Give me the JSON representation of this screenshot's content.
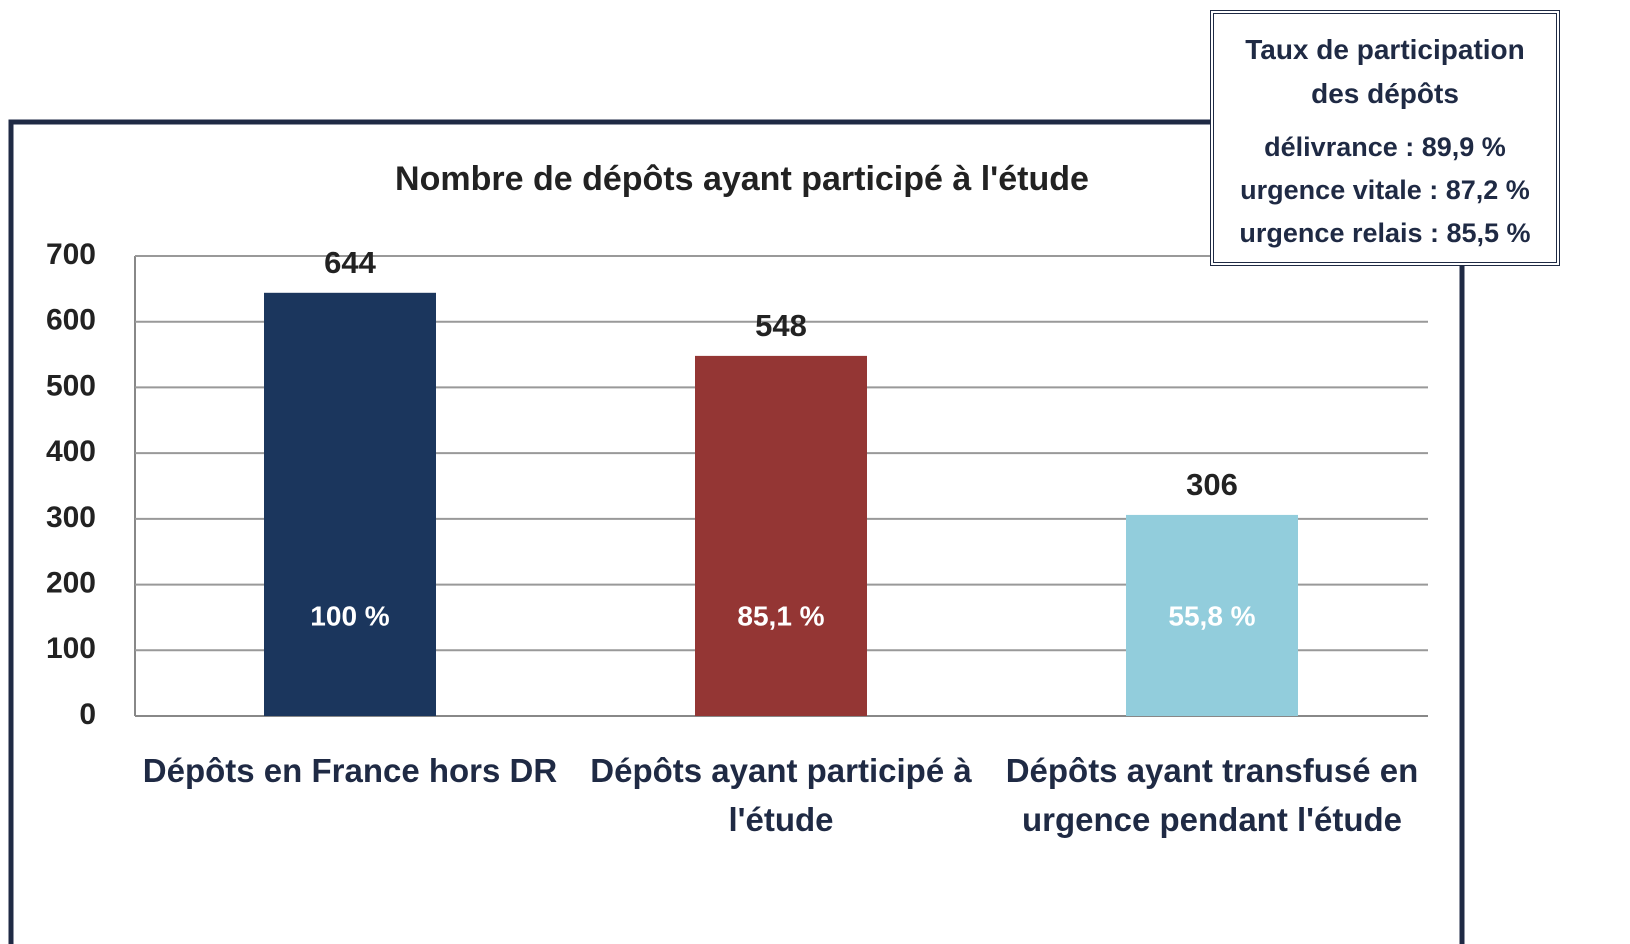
{
  "chart_data": {
    "type": "bar",
    "title": "Nombre de dépôts ayant participé à l'étude",
    "categories": [
      "Dépôts en France hors DR",
      "Dépôts ayant participé à l'étude",
      "Dépôts ayant transfusé en urgence pendant l'étude"
    ],
    "values": [
      644,
      548,
      306
    ],
    "colors": [
      "#1b365d",
      "#943634",
      "#92cddc"
    ],
    "annotations": [
      "100 %",
      "85,1 %",
      "55,8 %"
    ],
    "ylim": [
      0,
      700
    ],
    "yticks": [
      0,
      100,
      200,
      300,
      400,
      500,
      600,
      700
    ],
    "grid": true
  },
  "info_box": {
    "title": "Taux de participation des dépôts",
    "lines": [
      "délivrance : 89,9 %",
      "urgence vitale : 87,2 %",
      "urgence relais : 85,5 %"
    ]
  }
}
